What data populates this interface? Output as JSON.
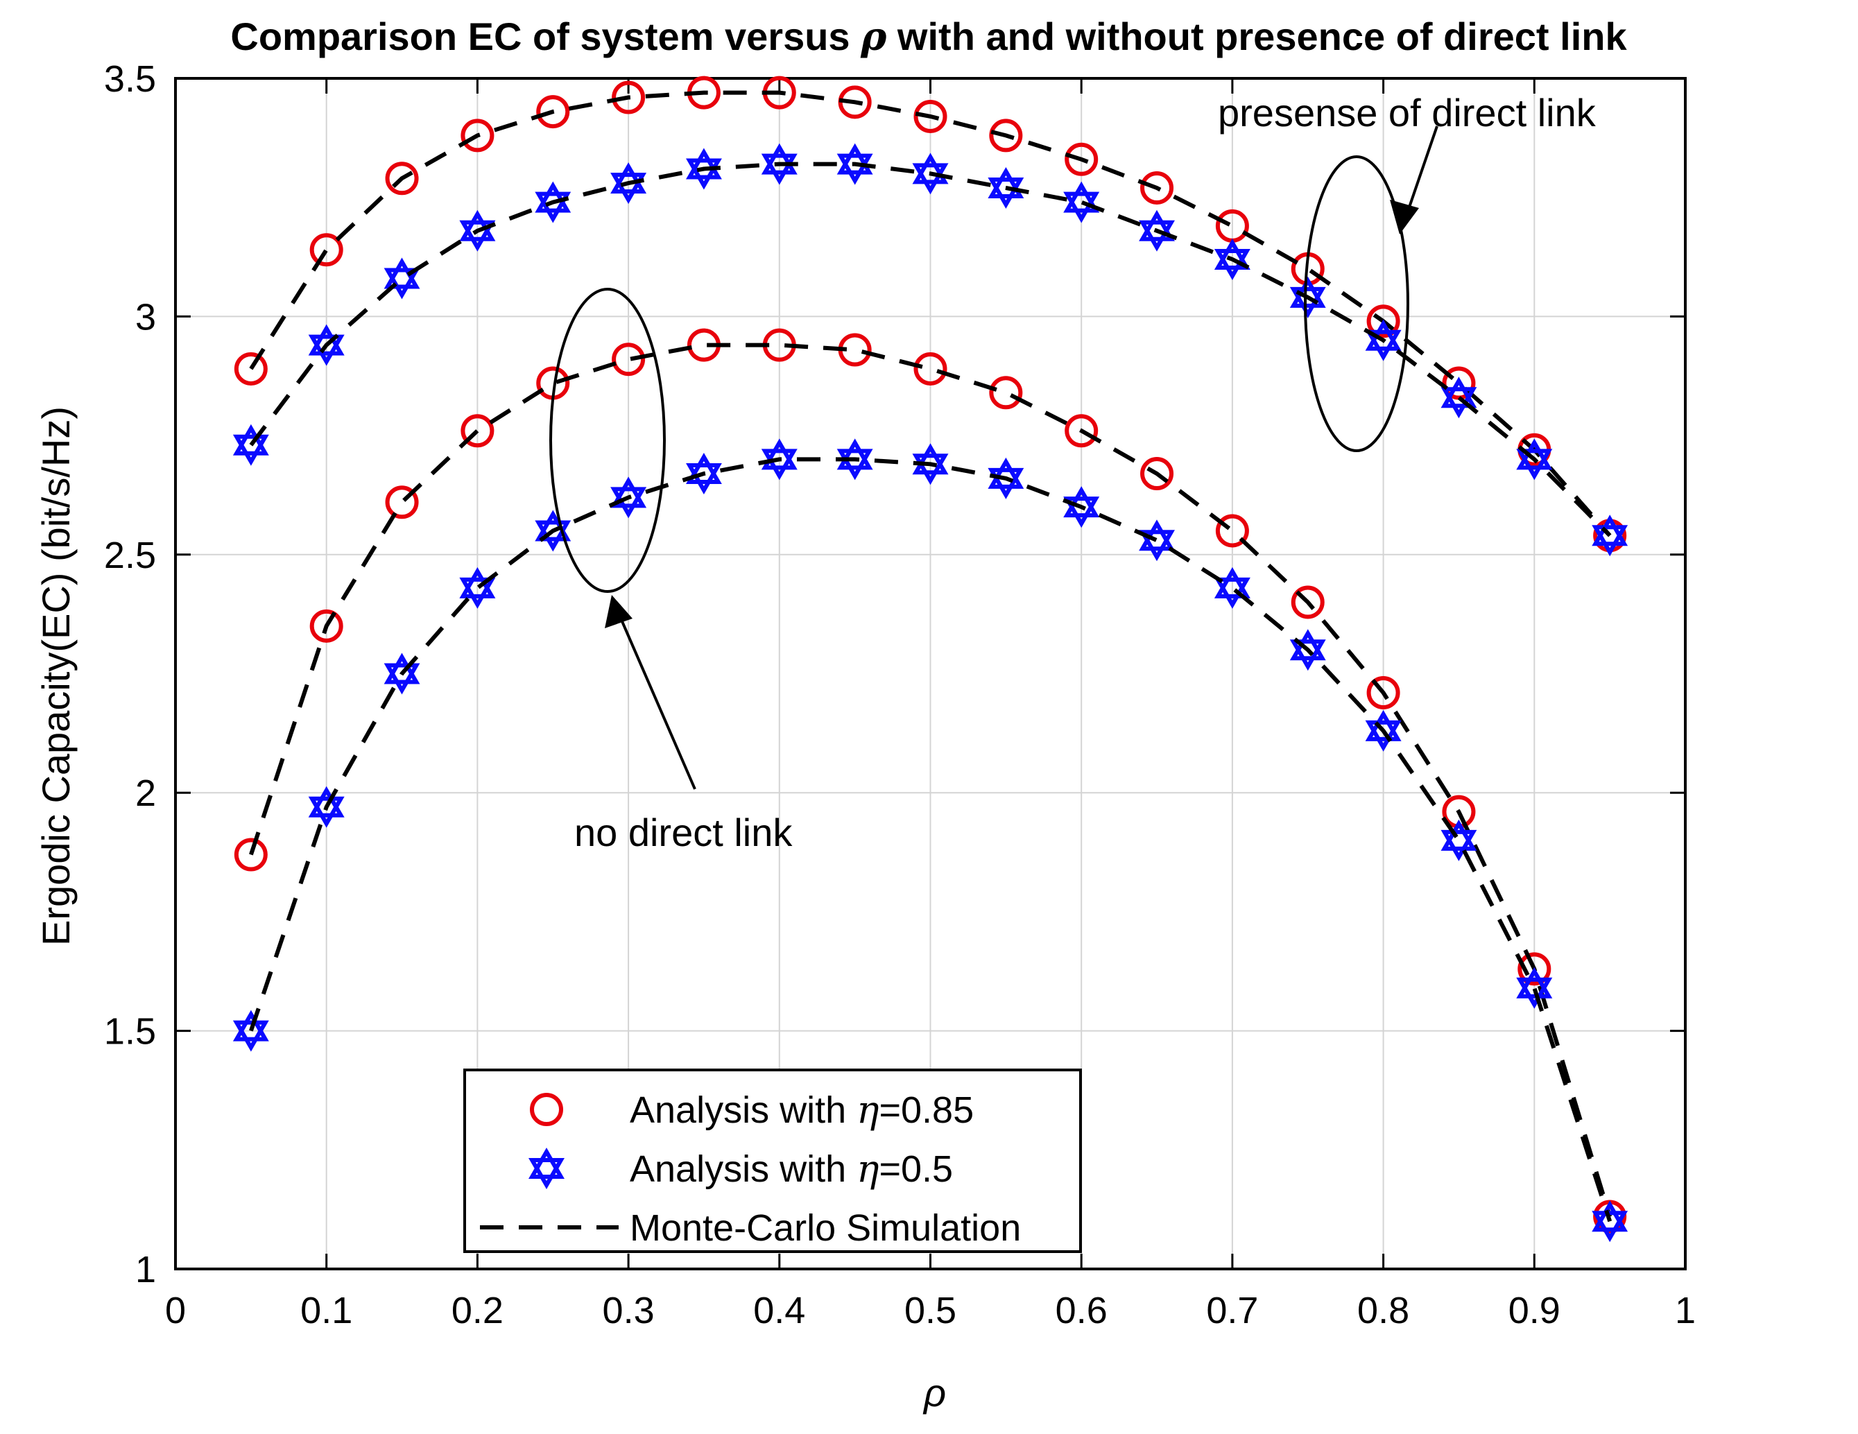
{
  "chart_data": {
    "type": "line",
    "title_prefix": "Comparison EC of system versus ",
    "title_symbol": "ρ",
    "title_suffix": " with and without presence of direct link",
    "xlabel": "ρ",
    "ylabel": "Ergodic Capacity(EC) (bit/s/Hz)",
    "xlim": [
      0,
      1
    ],
    "ylim": [
      1,
      3.5
    ],
    "xticks": [
      0,
      0.1,
      0.2,
      0.3,
      0.4,
      0.5,
      0.6,
      0.7,
      0.8,
      0.9,
      1
    ],
    "xtick_labels": [
      "0",
      "0.1",
      "0.2",
      "0.3",
      "0.4",
      "0.5",
      "0.6",
      "0.7",
      "0.8",
      "0.9",
      "1"
    ],
    "yticks": [
      1,
      1.5,
      2,
      2.5,
      3,
      3.5
    ],
    "ytick_labels": [
      "1",
      "1.5",
      "2",
      "2.5",
      "3",
      "3.5"
    ],
    "grid": true,
    "x": [
      0.05,
      0.1,
      0.15,
      0.2,
      0.25,
      0.3,
      0.35,
      0.4,
      0.45,
      0.5,
      0.55,
      0.6,
      0.65,
      0.7,
      0.75,
      0.8,
      0.85,
      0.9,
      0.95
    ],
    "series": [
      {
        "name": "direct-eta085",
        "group": "presence of direct link",
        "marker": "circle",
        "color": "#e8000b",
        "values": [
          2.89,
          3.14,
          3.29,
          3.38,
          3.43,
          3.46,
          3.47,
          3.47,
          3.45,
          3.42,
          3.38,
          3.33,
          3.27,
          3.19,
          3.1,
          2.99,
          2.86,
          2.72,
          2.54
        ]
      },
      {
        "name": "direct-eta05",
        "group": "presence of direct link",
        "marker": "hexagram",
        "color": "#0a0aff",
        "values": [
          2.73,
          2.94,
          3.08,
          3.18,
          3.24,
          3.28,
          3.31,
          3.32,
          3.32,
          3.3,
          3.27,
          3.24,
          3.18,
          3.12,
          3.04,
          2.95,
          2.83,
          2.7,
          2.54
        ]
      },
      {
        "name": "nodirect-eta085",
        "group": "no direct link",
        "marker": "circle",
        "color": "#e8000b",
        "values": [
          1.87,
          2.35,
          2.61,
          2.76,
          2.86,
          2.91,
          2.94,
          2.94,
          2.93,
          2.89,
          2.84,
          2.76,
          2.67,
          2.55,
          2.4,
          2.21,
          1.96,
          1.63,
          1.11
        ]
      },
      {
        "name": "nodirect-eta05",
        "group": "no direct link",
        "marker": "hexagram",
        "color": "#0a0aff",
        "values": [
          1.5,
          1.97,
          2.25,
          2.43,
          2.55,
          2.62,
          2.67,
          2.7,
          2.7,
          2.69,
          2.66,
          2.6,
          2.53,
          2.43,
          2.3,
          2.13,
          1.9,
          1.59,
          1.1
        ]
      }
    ],
    "legend": {
      "placement": "bottom-center",
      "entries": [
        {
          "marker": "circle",
          "color": "#e8000b",
          "prefix": "Analysis with ",
          "symbol": "η",
          "suffix": "=0.85"
        },
        {
          "marker": "hexagram",
          "color": "#0a0aff",
          "prefix": "Analysis with ",
          "symbol": "η",
          "suffix": "=0.5"
        },
        {
          "marker": "dashed-line",
          "color": "#000000",
          "prefix": "Monte-Carlo Simulation",
          "symbol": "",
          "suffix": ""
        }
      ]
    },
    "annotations": [
      {
        "text": "presense of direct link",
        "target": "ellipse around curves near ρ=0.78"
      },
      {
        "text": "no direct link",
        "target": "ellipse around curves near ρ=0.28"
      }
    ]
  }
}
